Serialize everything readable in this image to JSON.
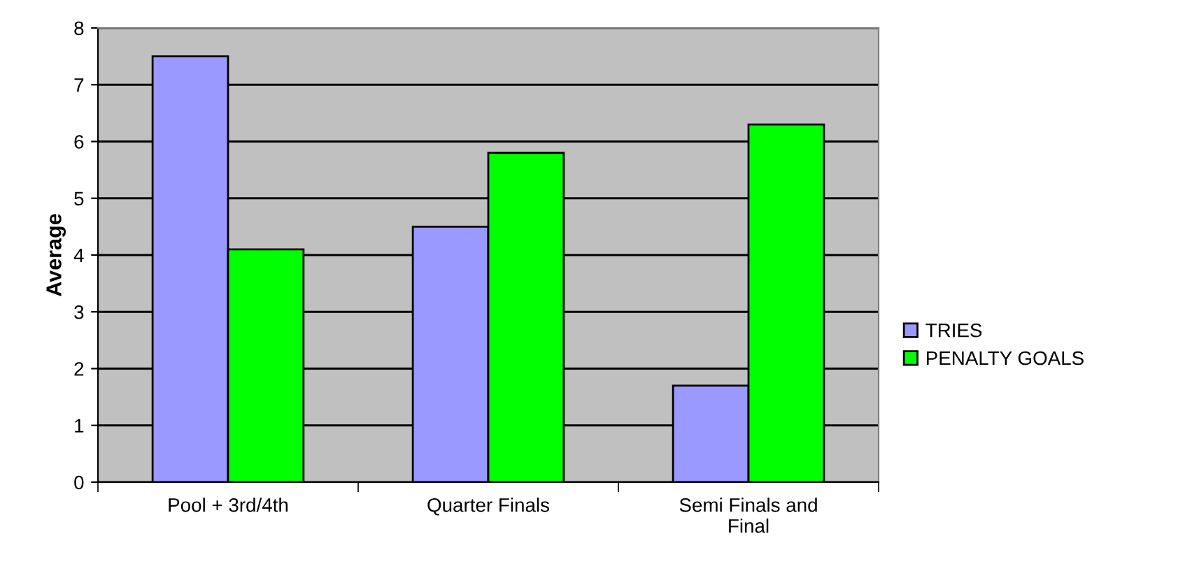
{
  "chart_data": {
    "type": "bar",
    "ylabel": "Average",
    "categories": [
      "Pool + 3rd/4th",
      "Quarter Finals",
      "Semi Finals and\nFinal"
    ],
    "series": [
      {
        "name": "TRIES",
        "color": "#9999ff",
        "values": [
          7.5,
          4.5,
          1.7
        ]
      },
      {
        "name": "PENALTY GOALS",
        "color": "#00ff00",
        "values": [
          4.1,
          5.8,
          6.3
        ]
      }
    ],
    "ylim": [
      0,
      8
    ],
    "yticks": [
      0,
      1,
      2,
      3,
      4,
      5,
      6,
      7,
      8
    ],
    "grid": "y",
    "legend": "right"
  }
}
